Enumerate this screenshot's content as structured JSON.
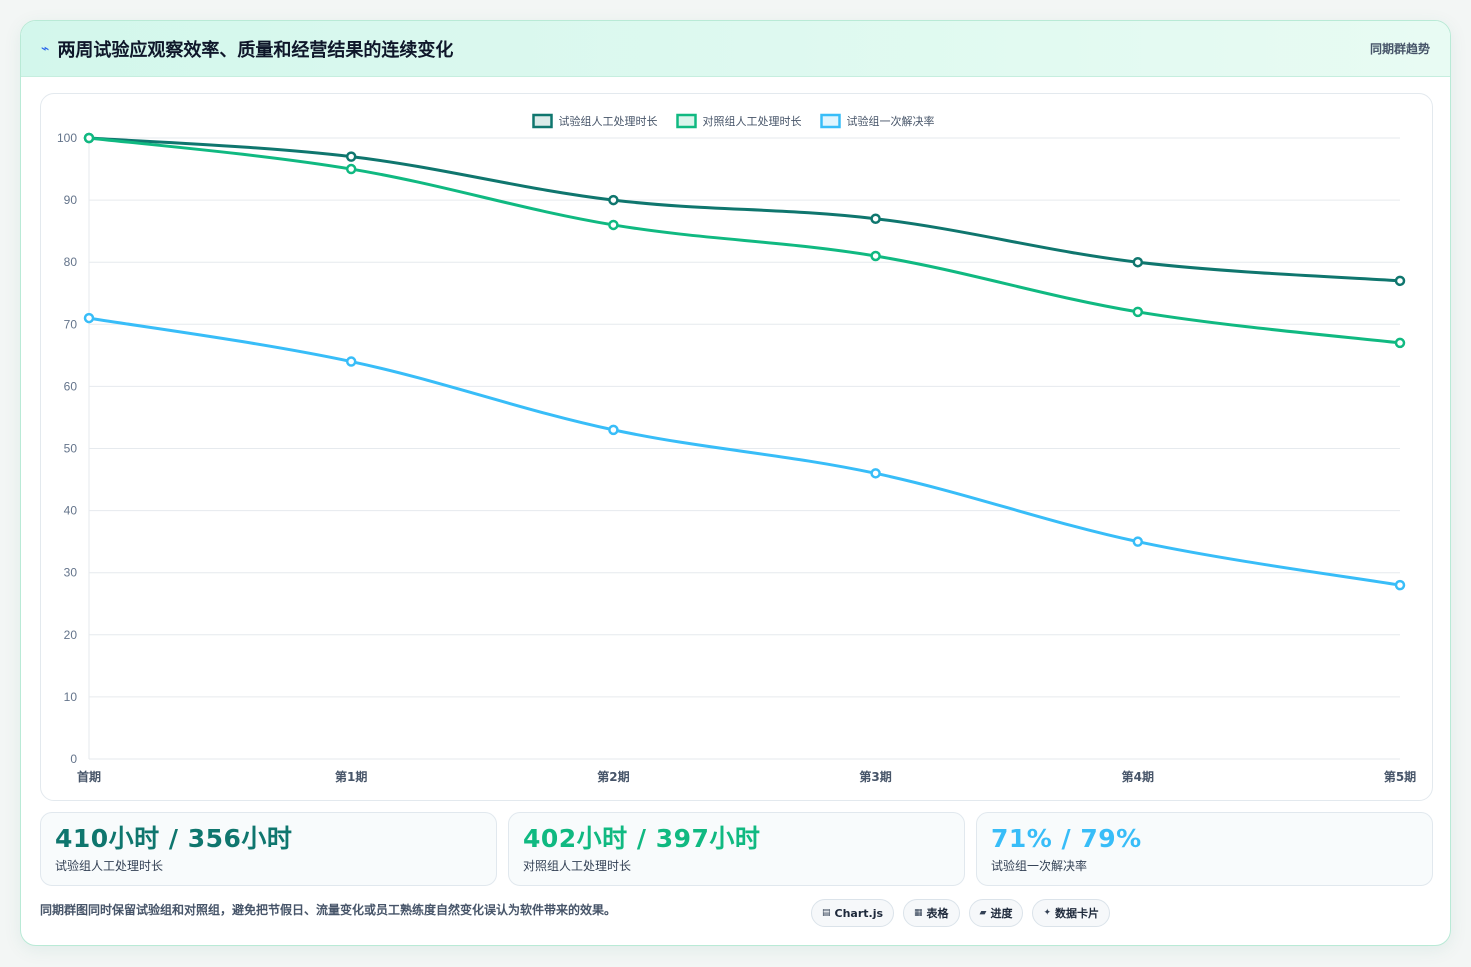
{
  "header": {
    "icon": "sparkle-icon",
    "title": "两周试验应观察效率、质量和经营结果的连续变化",
    "tag": "同期群趋势"
  },
  "chart_data": {
    "type": "line",
    "categories": [
      "首期",
      "第1期",
      "第2期",
      "第3期",
      "第4期",
      "第5期"
    ],
    "ylim": [
      0,
      100
    ],
    "yticks": [
      0,
      10,
      20,
      30,
      40,
      50,
      60,
      70,
      80,
      90,
      100
    ],
    "grid": true,
    "legend_position": "top",
    "series": [
      {
        "name": "试验组人工处理时长",
        "color": "#0f766e",
        "values": [
          100,
          97,
          90,
          87,
          80,
          77
        ]
      },
      {
        "name": "对照组人工处理时长",
        "color": "#10b981",
        "values": [
          100,
          95,
          86,
          81,
          72,
          67
        ]
      },
      {
        "name": "试验组一次解决率",
        "color": "#38bdf8",
        "values": [
          71,
          64,
          53,
          46,
          35,
          28
        ]
      }
    ]
  },
  "stats": [
    {
      "value": "410小时 / 356小时",
      "label": "试验组人工处理时长",
      "color": "#0f766e"
    },
    {
      "value": "402小时 / 397小时",
      "label": "对照组人工处理时长",
      "color": "#10b981"
    },
    {
      "value": "71% / 79%",
      "label": "试验组一次解决率",
      "color": "#38bdf8"
    }
  ],
  "footer": {
    "note": "同期群图同时保留试验组和对照组，避免把节假日、流量变化或员工熟练度自然变化误认为软件带来的效果。",
    "chips": [
      {
        "icon": "▤",
        "icon_name": "chart-icon",
        "label": "Chart.js"
      },
      {
        "icon": "▦",
        "icon_name": "table-icon",
        "label": "表格"
      },
      {
        "icon": "▰",
        "icon_name": "progress-icon",
        "label": "进度"
      },
      {
        "icon": "✦",
        "icon_name": "card-icon",
        "label": "数据卡片"
      }
    ]
  }
}
